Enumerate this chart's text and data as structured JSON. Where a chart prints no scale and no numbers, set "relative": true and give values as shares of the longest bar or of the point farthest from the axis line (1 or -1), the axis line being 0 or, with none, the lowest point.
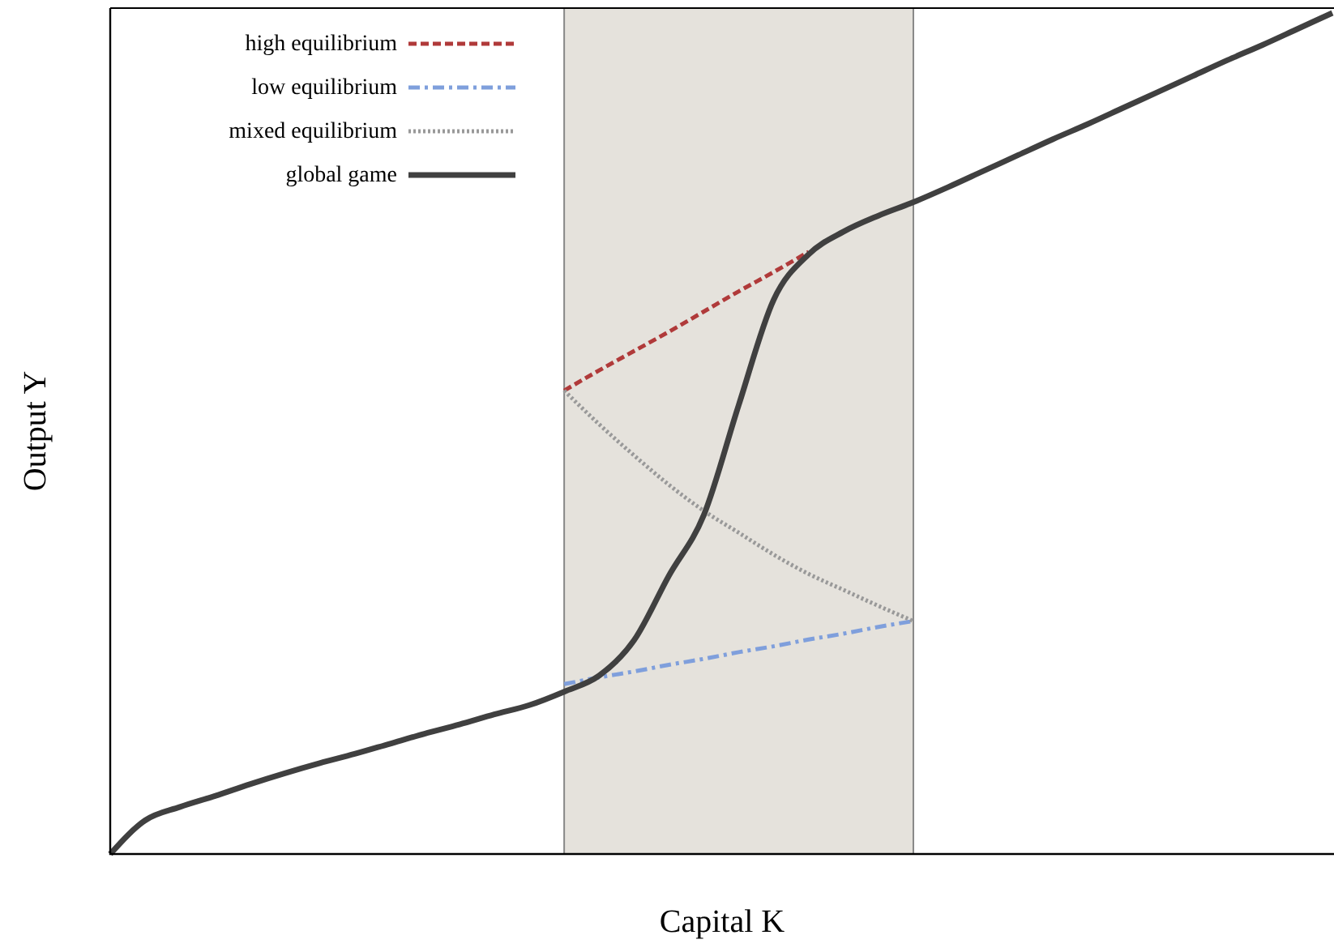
{
  "chart_data": {
    "type": "line",
    "relative": true,
    "xlabel": "Capital K",
    "ylabel": "Output Y",
    "categories": [
      null,
      null,
      null,
      null,
      null,
      null,
      null,
      null,
      null,
      null,
      null,
      null,
      null,
      null,
      null,
      null,
      null,
      null,
      null,
      null,
      null,
      null,
      null,
      null,
      null,
      null,
      null,
      null,
      null,
      null,
      null,
      null,
      null,
      null,
      null,
      null
    ],
    "series": [
      {
        "name": "high equilibrium",
        "color": "#b03a3a",
        "line_style": "dashed",
        "values": [
          null,
          null,
          null,
          null,
          null,
          null,
          null,
          null,
          null,
          null,
          null,
          null,
          null,
          0.551,
          0.575,
          0.598,
          0.621,
          0.645,
          0.669,
          0.692,
          0.716,
          null,
          null,
          null,
          null,
          null,
          null,
          null,
          null,
          null,
          null,
          null,
          null,
          null,
          null,
          null
        ]
      },
      {
        "name": "low equilibrium",
        "color": "#7f9fdc",
        "line_style": "dashdot",
        "values": [
          null,
          null,
          null,
          null,
          null,
          null,
          null,
          null,
          null,
          null,
          null,
          null,
          null,
          0.202,
          0.21,
          0.217,
          0.225,
          0.232,
          0.24,
          0.247,
          0.255,
          0.262,
          0.27,
          0.277,
          null,
          null,
          null,
          null,
          null,
          null,
          null,
          null,
          null,
          null,
          null,
          null
        ]
      },
      {
        "name": "mixed equilibrium",
        "color": "#999999",
        "line_style": "dotted",
        "values": [
          null,
          null,
          null,
          null,
          null,
          null,
          null,
          null,
          null,
          null,
          null,
          null,
          null,
          0.551,
          0.511,
          0.474,
          0.439,
          0.408,
          0.382,
          0.356,
          0.333,
          0.314,
          0.295,
          0.277,
          null,
          null,
          null,
          null,
          null,
          null,
          null,
          null,
          null,
          null,
          null,
          null
        ]
      },
      {
        "name": "global game",
        "color": "#404040",
        "line_style": "solid",
        "values": [
          0,
          0.04,
          0.056,
          0.069,
          0.083,
          0.096,
          0.108,
          0.119,
          0.131,
          0.143,
          0.154,
          0.166,
          0.177,
          0.193,
          0.212,
          0.254,
          0.331,
          0.403,
          0.534,
          0.659,
          0.713,
          0.74,
          0.759,
          0.775,
          0.793,
          0.812,
          0.831,
          0.85,
          0.868,
          0.887,
          0.906,
          0.925,
          0.944,
          0.962,
          0.981,
          1.0
        ]
      }
    ],
    "legend": "top left"
  }
}
